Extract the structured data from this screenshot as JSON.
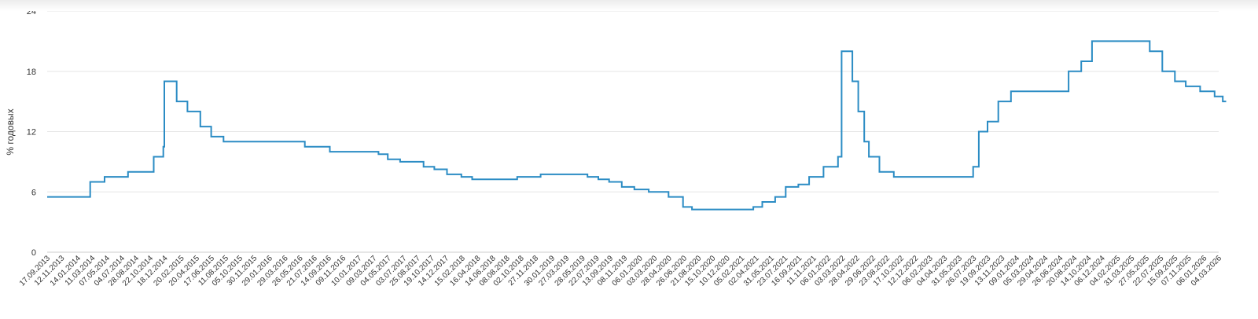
{
  "chart_data": {
    "type": "line",
    "ylabel": "% годовых",
    "ylim": [
      0,
      24
    ],
    "y_ticks": [
      "0",
      "6",
      "12",
      "18",
      "24"
    ],
    "grid": true,
    "legend": "none",
    "line_color": "#2b8cc4",
    "grid_color": "#e6e6e6",
    "x_tick_labels": [
      "17.09.2013",
      "12.11.2013",
      "14.01.2014",
      "11.03.2014",
      "07.05.2014",
      "04.07.2014",
      "28.08.2014",
      "22.10.2014",
      "18.12.2014",
      "20.02.2015",
      "20.04.2015",
      "17.06.2015",
      "11.08.2015",
      "05.10.2015",
      "30.11.2015",
      "29.01.2016",
      "29.03.2016",
      "26.05.2016",
      "21.07.2016",
      "14.09.2016",
      "09.11.2016",
      "10.01.2017",
      "09.03.2017",
      "04.05.2017",
      "03.07.2017",
      "25.08.2017",
      "19.10.2017",
      "14.12.2017",
      "15.02.2018",
      "16.04.2018",
      "14.06.2018",
      "08.08.2018",
      "02.10.2018",
      "27.11.2018",
      "30.01.2019",
      "27.03.2019",
      "28.05.2019",
      "22.07.2019",
      "13.09.2019",
      "08.11.2019",
      "06.01.2020",
      "03.03.2020",
      "28.04.2020",
      "26.06.2020",
      "21.08.2020",
      "15.10.2020",
      "10.12.2020",
      "05.02.2021",
      "02.04.2021",
      "31.05.2021",
      "23.07.2021",
      "16.09.2021",
      "11.11.2021",
      "06.01.2022",
      "03.03.2022",
      "28.04.2022",
      "29.06.2022",
      "23.08.2022",
      "17.10.2022",
      "12.12.2022",
      "06.02.2023",
      "04.04.2023",
      "31.05.2023",
      "26.07.2023",
      "19.09.2023",
      "13.11.2023",
      "09.01.2024",
      "05.03.2024",
      "29.04.2024",
      "26.06.2024",
      "20.08.2024",
      "14.10.2024",
      "06.12.2024",
      "04.02.2025",
      "31.03.2025",
      "27.05.2025",
      "22.07.2025",
      "15.09.2025",
      "07.11.2025",
      "06.01.2026",
      "04.03.2026"
    ],
    "series": [
      {
        "values_step": [
          [
            "17.09.2013",
            5.5
          ],
          [
            "03.03.2014",
            7.0
          ],
          [
            "28.04.2014",
            7.5
          ],
          [
            "28.07.2014",
            8.0
          ],
          [
            "05.11.2014",
            9.5
          ],
          [
            "12.12.2014",
            10.5
          ],
          [
            "16.12.2014",
            17.0
          ],
          [
            "02.02.2015",
            15.0
          ],
          [
            "16.03.2015",
            14.0
          ],
          [
            "05.05.2015",
            12.5
          ],
          [
            "16.06.2015",
            11.5
          ],
          [
            "03.08.2015",
            11.0
          ],
          [
            "14.06.2016",
            10.5
          ],
          [
            "19.09.2016",
            10.0
          ],
          [
            "27.03.2017",
            9.75
          ],
          [
            "02.05.2017",
            9.25
          ],
          [
            "19.06.2017",
            9.0
          ],
          [
            "18.09.2017",
            8.5
          ],
          [
            "30.10.2017",
            8.25
          ],
          [
            "18.12.2017",
            7.75
          ],
          [
            "12.02.2018",
            7.5
          ],
          [
            "26.03.2018",
            7.25
          ],
          [
            "17.09.2018",
            7.5
          ],
          [
            "17.12.2018",
            7.75
          ],
          [
            "17.06.2019",
            7.5
          ],
          [
            "29.07.2019",
            7.25
          ],
          [
            "09.09.2019",
            7.0
          ],
          [
            "28.10.2019",
            6.5
          ],
          [
            "16.12.2019",
            6.25
          ],
          [
            "10.02.2020",
            6.0
          ],
          [
            "27.04.2020",
            5.5
          ],
          [
            "22.06.2020",
            4.5
          ],
          [
            "27.07.2020",
            4.25
          ],
          [
            "22.03.2021",
            4.5
          ],
          [
            "26.04.2021",
            5.0
          ],
          [
            "15.06.2021",
            5.5
          ],
          [
            "26.07.2021",
            6.5
          ],
          [
            "13.09.2021",
            6.75
          ],
          [
            "25.10.2021",
            7.5
          ],
          [
            "20.12.2021",
            8.5
          ],
          [
            "14.02.2022",
            9.5
          ],
          [
            "28.02.2022",
            20.0
          ],
          [
            "11.04.2022",
            17.0
          ],
          [
            "04.05.2022",
            14.0
          ],
          [
            "27.05.2022",
            11.0
          ],
          [
            "14.06.2022",
            9.5
          ],
          [
            "25.07.2022",
            8.0
          ],
          [
            "19.09.2022",
            7.5
          ],
          [
            "24.07.2023",
            8.5
          ],
          [
            "15.08.2023",
            12.0
          ],
          [
            "18.09.2023",
            13.0
          ],
          [
            "30.10.2023",
            15.0
          ],
          [
            "18.12.2023",
            16.0
          ],
          [
            "29.07.2024",
            18.0
          ],
          [
            "16.09.2024",
            19.0
          ],
          [
            "28.10.2024",
            21.0
          ],
          [
            "09.06.2025",
            20.0
          ],
          [
            "28.07.2025",
            18.0
          ],
          [
            "15.09.2025",
            17.0
          ],
          [
            "27.10.2025",
            16.5
          ],
          [
            "22.12.2025",
            16.0
          ],
          [
            "16.02.2026",
            15.5
          ],
          [
            "20.03.2026",
            15.0
          ],
          [
            "02.04.2026",
            15.0
          ]
        ]
      }
    ]
  }
}
